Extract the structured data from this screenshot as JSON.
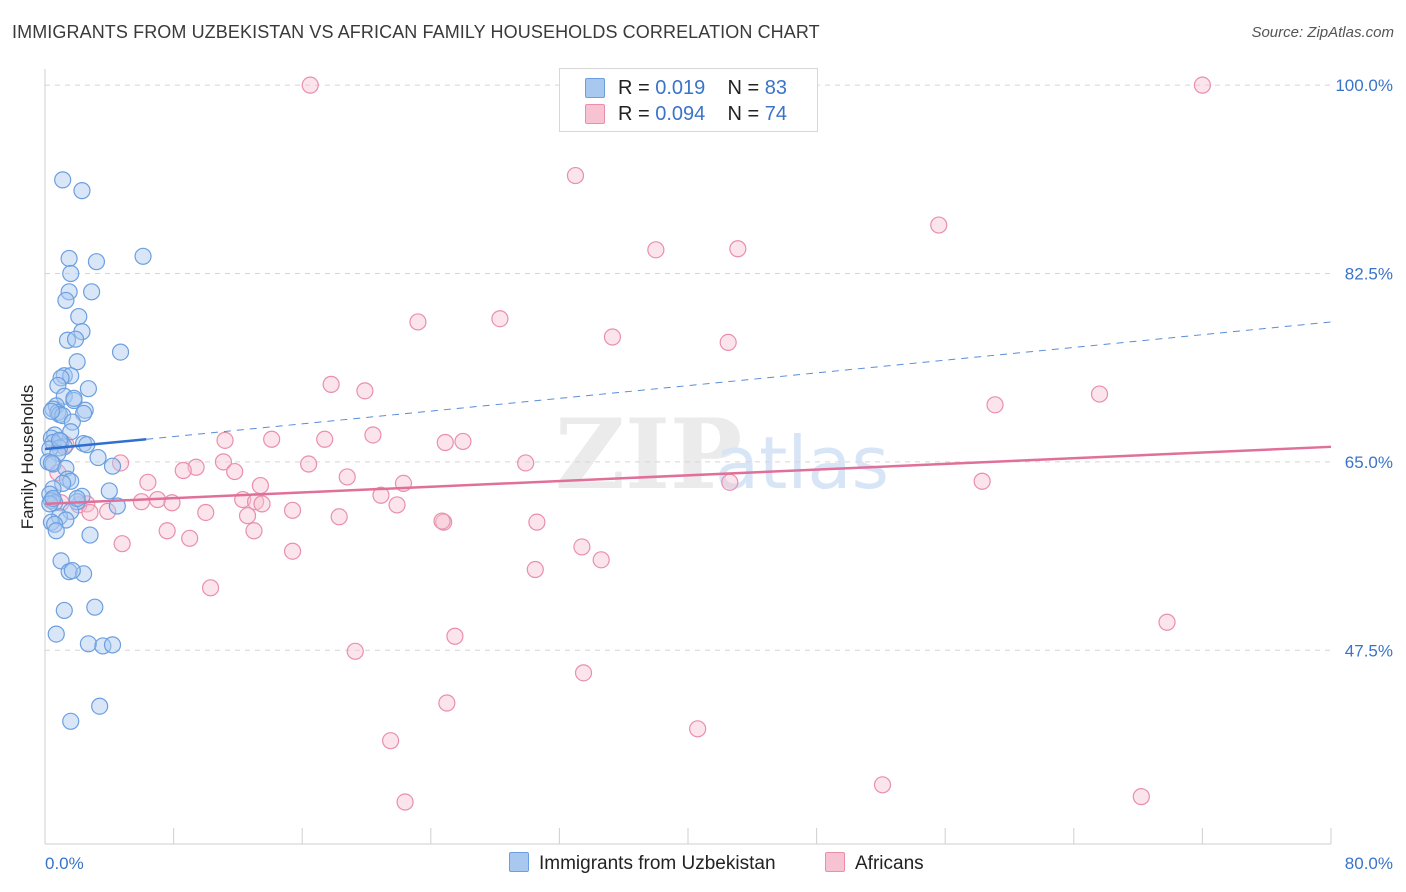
{
  "title": "IMMIGRANTS FROM UZBEKISTAN VS AFRICAN FAMILY HOUSEHOLDS CORRELATION CHART",
  "source": "Source: ZipAtlas.com",
  "watermark": {
    "zip": "ZIP",
    "atlas": "atlas"
  },
  "legend_top": [
    {
      "r_label": "R =",
      "r_value": "0.019",
      "n_label": "N =",
      "n_value": "83"
    },
    {
      "r_label": "R =",
      "r_value": "0.094",
      "n_label": "N =",
      "n_value": "74"
    }
  ],
  "legend_bottom": [
    {
      "label": "Immigrants from Uzbekistan"
    },
    {
      "label": "Africans"
    }
  ],
  "colors": {
    "blue_fill": "#a9c8f0",
    "blue_stroke": "#6c9fe0",
    "blue_line": "#2e6fcf",
    "pink_fill": "#f7c3d3",
    "pink_stroke": "#e98fac",
    "pink_line": "#e07099",
    "axis_text": "#3a74c8",
    "grid": "#d5d5d5"
  },
  "chart_data": {
    "type": "scatter",
    "title": "IMMIGRANTS FROM UZBEKISTAN VS AFRICAN FAMILY HOUSEHOLDS CORRELATION CHART",
    "xlabel": "",
    "ylabel": "Family Households",
    "xlim": [
      0,
      80
    ],
    "ylim": [
      29.5,
      101.5
    ],
    "x_tick_labels": [
      {
        "value": 0,
        "label": "0.0%"
      },
      {
        "value": 80,
        "label": "80.0%"
      }
    ],
    "y_tick_labels": [
      {
        "value": 100,
        "label": "100.0%"
      },
      {
        "value": 82.5,
        "label": "82.5%"
      },
      {
        "value": 65,
        "label": "65.0%"
      },
      {
        "value": 47.5,
        "label": "47.5%"
      }
    ],
    "x_minor_ticks": [
      0,
      8,
      16,
      24,
      32,
      40,
      48,
      56,
      64,
      72,
      80
    ],
    "series": [
      {
        "name": "Immigrants from Uzbekistan",
        "color": "blue",
        "trend": {
          "x": [
            0,
            6.3
          ],
          "y": [
            66.2,
            67.1
          ],
          "dashed_to": [
            80,
            78.0
          ]
        },
        "points": [
          [
            1.1,
            91.2
          ],
          [
            2.3,
            90.2
          ],
          [
            6.1,
            84.1
          ],
          [
            1.5,
            83.9
          ],
          [
            3.2,
            83.6
          ],
          [
            1.6,
            82.5
          ],
          [
            2.9,
            80.8
          ],
          [
            1.5,
            80.8
          ],
          [
            1.3,
            80.0
          ],
          [
            2.1,
            78.5
          ],
          [
            2.3,
            77.1
          ],
          [
            1.4,
            76.3
          ],
          [
            1.9,
            76.4
          ],
          [
            4.7,
            75.2
          ],
          [
            2.0,
            74.3
          ],
          [
            1.2,
            73.0
          ],
          [
            1.6,
            73.0
          ],
          [
            1.0,
            72.8
          ],
          [
            0.8,
            72.1
          ],
          [
            2.7,
            71.8
          ],
          [
            1.2,
            71.1
          ],
          [
            1.8,
            70.7
          ],
          [
            0.7,
            70.2
          ],
          [
            0.5,
            69.9
          ],
          [
            0.8,
            69.6
          ],
          [
            2.5,
            69.8
          ],
          [
            2.4,
            69.5
          ],
          [
            0.9,
            69.4
          ],
          [
            1.1,
            69.3
          ],
          [
            0.4,
            69.7
          ],
          [
            1.7,
            68.7
          ],
          [
            1.6,
            67.8
          ],
          [
            0.6,
            67.5
          ],
          [
            0.4,
            67.2
          ],
          [
            1.0,
            66.9
          ],
          [
            0.5,
            66.8
          ],
          [
            2.4,
            66.7
          ],
          [
            2.6,
            66.6
          ],
          [
            1.2,
            66.4
          ],
          [
            0.9,
            66.3
          ],
          [
            0.3,
            66.2
          ],
          [
            0.8,
            65.8
          ],
          [
            3.3,
            65.4
          ],
          [
            0.2,
            65.0
          ],
          [
            0.5,
            64.8
          ],
          [
            4.2,
            64.6
          ],
          [
            1.3,
            64.4
          ],
          [
            1.4,
            63.4
          ],
          [
            1.6,
            63.2
          ],
          [
            1.1,
            63.0
          ],
          [
            0.5,
            62.5
          ],
          [
            4.0,
            62.3
          ],
          [
            0.3,
            62.0
          ],
          [
            2.3,
            61.8
          ],
          [
            0.4,
            61.4
          ],
          [
            0.6,
            61.2
          ],
          [
            2.0,
            61.3
          ],
          [
            0.3,
            61.1
          ],
          [
            4.5,
            60.9
          ],
          [
            1.6,
            60.4
          ],
          [
            0.9,
            59.9
          ],
          [
            1.3,
            59.6
          ],
          [
            0.4,
            59.4
          ],
          [
            0.6,
            59.2
          ],
          [
            0.7,
            58.6
          ],
          [
            2.8,
            58.2
          ],
          [
            1.0,
            55.8
          ],
          [
            1.5,
            54.8
          ],
          [
            2.4,
            54.6
          ],
          [
            1.7,
            54.9
          ],
          [
            3.1,
            51.5
          ],
          [
            1.2,
            51.2
          ],
          [
            0.7,
            49.0
          ],
          [
            2.7,
            48.1
          ],
          [
            3.6,
            47.9
          ],
          [
            4.2,
            48.0
          ],
          [
            1.6,
            40.9
          ],
          [
            3.4,
            42.3
          ],
          [
            0.5,
            61.6
          ],
          [
            1.8,
            70.9
          ],
          [
            0.9,
            67.0
          ],
          [
            0.4,
            64.9
          ],
          [
            2.0,
            61.6
          ]
        ]
      },
      {
        "name": "Africans",
        "color": "pink",
        "trend": {
          "x": [
            0,
            80
          ],
          "y": [
            61.1,
            66.4
          ]
        },
        "points": [
          [
            16.5,
            100.0
          ],
          [
            72.0,
            100.0
          ],
          [
            33.0,
            91.6
          ],
          [
            38.0,
            84.7
          ],
          [
            43.1,
            84.8
          ],
          [
            55.6,
            87.0
          ],
          [
            23.2,
            78.0
          ],
          [
            28.3,
            78.3
          ],
          [
            35.3,
            76.6
          ],
          [
            42.5,
            76.1
          ],
          [
            17.8,
            72.2
          ],
          [
            19.9,
            71.6
          ],
          [
            59.1,
            70.3
          ],
          [
            65.6,
            71.3
          ],
          [
            20.4,
            67.5
          ],
          [
            11.2,
            67.0
          ],
          [
            14.1,
            67.1
          ],
          [
            17.4,
            67.1
          ],
          [
            24.9,
            66.8
          ],
          [
            26.0,
            66.9
          ],
          [
            11.1,
            65.0
          ],
          [
            16.4,
            64.8
          ],
          [
            29.9,
            64.9
          ],
          [
            4.7,
            64.9
          ],
          [
            9.4,
            64.5
          ],
          [
            8.6,
            64.2
          ],
          [
            11.8,
            64.1
          ],
          [
            18.8,
            63.6
          ],
          [
            6.4,
            63.1
          ],
          [
            13.4,
            62.8
          ],
          [
            22.3,
            63.0
          ],
          [
            42.6,
            63.1
          ],
          [
            58.3,
            63.2
          ],
          [
            20.9,
            61.9
          ],
          [
            12.3,
            61.5
          ],
          [
            7.0,
            61.5
          ],
          [
            6.0,
            61.3
          ],
          [
            2.6,
            61.1
          ],
          [
            2.1,
            61.0
          ],
          [
            13.1,
            61.3
          ],
          [
            13.5,
            61.1
          ],
          [
            21.9,
            61.0
          ],
          [
            7.9,
            61.2
          ],
          [
            10.0,
            60.3
          ],
          [
            12.6,
            60.0
          ],
          [
            15.4,
            60.5
          ],
          [
            3.9,
            60.4
          ],
          [
            2.8,
            60.3
          ],
          [
            24.8,
            59.4
          ],
          [
            24.7,
            59.5
          ],
          [
            18.3,
            59.9
          ],
          [
            30.6,
            59.4
          ],
          [
            13.0,
            58.6
          ],
          [
            7.6,
            58.6
          ],
          [
            9.0,
            57.9
          ],
          [
            4.8,
            57.4
          ],
          [
            15.4,
            56.7
          ],
          [
            33.4,
            57.1
          ],
          [
            34.6,
            55.9
          ],
          [
            30.5,
            55.0
          ],
          [
            10.3,
            53.3
          ],
          [
            69.8,
            50.1
          ],
          [
            25.5,
            48.8
          ],
          [
            19.3,
            47.4
          ],
          [
            33.5,
            45.4
          ],
          [
            25.0,
            42.6
          ],
          [
            40.6,
            40.2
          ],
          [
            21.5,
            39.1
          ],
          [
            52.1,
            35.0
          ],
          [
            22.4,
            33.4
          ],
          [
            68.2,
            33.9
          ],
          [
            1.0,
            61.2
          ],
          [
            0.8,
            64.0
          ],
          [
            1.3,
            66.6
          ]
        ]
      }
    ]
  }
}
